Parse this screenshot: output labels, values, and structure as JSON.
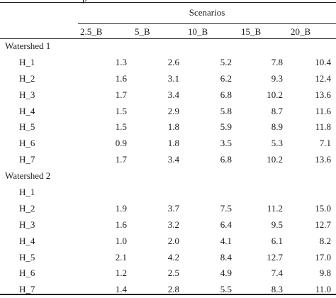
{
  "caption_fragment": "p",
  "header": {
    "spanner": "Scenarios",
    "columns": [
      "2.5_B",
      "5_B",
      "10_B",
      "15_B",
      "20_B"
    ]
  },
  "groups": [
    {
      "label": "Watershed 1",
      "rows": [
        {
          "label": "H_1",
          "values": [
            "1.3",
            "2.6",
            "5.2",
            "7.8",
            "10.4"
          ]
        },
        {
          "label": "H_2",
          "values": [
            "1.6",
            "3.1",
            "6.2",
            "9.3",
            "12.4"
          ]
        },
        {
          "label": "H_3",
          "values": [
            "1.7",
            "3.4",
            "6.8",
            "10.2",
            "13.6"
          ]
        },
        {
          "label": "H_4",
          "values": [
            "1.5",
            "2.9",
            "5.8",
            "8.7",
            "11.6"
          ]
        },
        {
          "label": "H_5",
          "values": [
            "1.5",
            "1.8",
            "5.9",
            "8.9",
            "11.8"
          ]
        },
        {
          "label": "H_6",
          "values": [
            "0.9",
            "1.8",
            "3.5",
            "5.3",
            "7.1"
          ]
        },
        {
          "label": "H_7",
          "values": [
            "1.7",
            "3.4",
            "6.8",
            "10.2",
            "13.6"
          ]
        }
      ]
    },
    {
      "label": "Watershed 2",
      "rows": [
        {
          "label": "H_1",
          "values": [
            "",
            "",
            "",
            "",
            ""
          ]
        },
        {
          "label": "H_2",
          "values": [
            "1.9",
            "3.7",
            "7.5",
            "11.2",
            "15.0"
          ]
        },
        {
          "label": "H_3",
          "values": [
            "1.6",
            "3.2",
            "6.4",
            "9.5",
            "12.7"
          ]
        },
        {
          "label": "H_4",
          "values": [
            "1.0",
            "2.0",
            "4.1",
            "6.1",
            "8.2"
          ]
        },
        {
          "label": "H_5",
          "values": [
            "2.1",
            "4.2",
            "8.4",
            "12.7",
            "17.0"
          ]
        },
        {
          "label": "H_6",
          "values": [
            "1.2",
            "2.5",
            "4.9",
            "7.4",
            "9.8"
          ]
        },
        {
          "label": "H_7",
          "values": [
            "1.4",
            "2.8",
            "5.5",
            "8.3",
            "11.0"
          ]
        }
      ]
    }
  ]
}
